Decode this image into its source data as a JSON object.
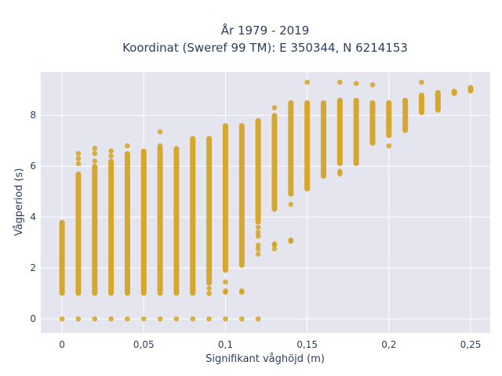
{
  "chart_data": {
    "type": "scatter",
    "title_line1": "År 1979 - 2019",
    "title_line2": "Koordinat (Sweref 99 TM): E 350344, N 6214153",
    "xlabel": "Signifikant våghöjd (m)",
    "ylabel": "Vågperiod (s)",
    "xlim": [
      -0.013,
      0.262
    ],
    "ylim": [
      -0.55,
      9.7
    ],
    "x_ticks": [
      0,
      0.05,
      0.1,
      0.15,
      0.2,
      0.25
    ],
    "x_tick_labels": [
      "0",
      "0,05",
      "0,1",
      "0,15",
      "0,2",
      "0,25"
    ],
    "y_ticks": [
      0,
      2,
      4,
      6,
      8
    ],
    "y_tick_labels": [
      "0",
      "2",
      "4",
      "6",
      "8"
    ],
    "grid": true,
    "colors": {
      "marker": "#d4a017",
      "plot_bg": "#e5e5f0",
      "grid": "#ffffff",
      "text": "#2a3f5f"
    },
    "columns": [
      {
        "x": 0,
        "ranges": [
          [
            1.0,
            3.8
          ]
        ],
        "points": [
          0
        ]
      },
      {
        "x": 0.01,
        "ranges": [
          [
            1.0,
            5.7
          ]
        ],
        "points": [
          0,
          6.1,
          6.3,
          6.5
        ]
      },
      {
        "x": 0.02,
        "ranges": [
          [
            1.0,
            6.0
          ]
        ],
        "points": [
          0,
          6.2,
          6.5,
          6.7
        ]
      },
      {
        "x": 0.03,
        "ranges": [
          [
            1.0,
            6.2
          ]
        ],
        "points": [
          0,
          6.4,
          6.6
        ]
      },
      {
        "x": 0.04,
        "ranges": [
          [
            1.0,
            6.5
          ]
        ],
        "points": [
          0,
          6.8
        ]
      },
      {
        "x": 0.05,
        "ranges": [
          [
            1.0,
            6.6
          ]
        ],
        "points": [
          0
        ]
      },
      {
        "x": 0.06,
        "ranges": [
          [
            1.0,
            6.7
          ]
        ],
        "points": [
          0,
          6.8,
          7.35
        ]
      },
      {
        "x": 0.07,
        "ranges": [
          [
            1.0,
            6.7
          ]
        ],
        "points": [
          0
        ]
      },
      {
        "x": 0.08,
        "ranges": [
          [
            1.0,
            7.1
          ]
        ],
        "points": [
          0
        ]
      },
      {
        "x": 0.09,
        "ranges": [
          [
            1.4,
            7.1
          ]
        ],
        "points": [
          0,
          1.0,
          1.2
        ]
      },
      {
        "x": 0.1,
        "ranges": [
          [
            1.9,
            7.6
          ]
        ],
        "points": [
          0,
          1.05,
          1.1,
          1.45
        ]
      },
      {
        "x": 0.11,
        "ranges": [
          [
            2.1,
            7.6
          ]
        ],
        "points": [
          0,
          1.05,
          1.1
        ]
      },
      {
        "x": 0.12,
        "ranges": [
          [
            3.8,
            7.8
          ]
        ],
        "points": [
          0,
          2.55,
          2.75,
          2.9,
          3.25,
          3.4,
          3.6
        ]
      },
      {
        "x": 0.13,
        "ranges": [
          [
            4.3,
            8.0
          ]
        ],
        "points": [
          2.75,
          2.9,
          2.95,
          8.3
        ]
      },
      {
        "x": 0.14,
        "ranges": [
          [
            4.9,
            8.5
          ]
        ],
        "points": [
          3.05,
          3.1,
          4.5
        ]
      },
      {
        "x": 0.15,
        "ranges": [
          [
            5.1,
            8.5
          ]
        ],
        "points": [
          9.3
        ]
      },
      {
        "x": 0.16,
        "ranges": [
          [
            5.6,
            8.5
          ]
        ],
        "points": []
      },
      {
        "x": 0.17,
        "ranges": [
          [
            6.1,
            8.6
          ]
        ],
        "points": [
          5.7,
          5.8,
          9.3
        ]
      },
      {
        "x": 0.18,
        "ranges": [
          [
            6.1,
            8.6
          ]
        ],
        "points": [
          9.25
        ]
      },
      {
        "x": 0.19,
        "ranges": [
          [
            6.9,
            8.5
          ]
        ],
        "points": [
          9.2
        ]
      },
      {
        "x": 0.2,
        "ranges": [
          [
            7.2,
            8.5
          ]
        ],
        "points": [
          6.8
        ]
      },
      {
        "x": 0.21,
        "ranges": [
          [
            7.4,
            8.6
          ]
        ],
        "points": []
      },
      {
        "x": 0.22,
        "ranges": [
          [
            8.1,
            8.8
          ]
        ],
        "points": [
          9.3
        ]
      },
      {
        "x": 0.23,
        "ranges": [
          [
            8.2,
            8.9
          ]
        ],
        "points": []
      },
      {
        "x": 0.24,
        "ranges": [
          [
            8.85,
            8.95
          ]
        ],
        "points": []
      },
      {
        "x": 0.25,
        "ranges": [
          [
            8.95,
            9.1
          ]
        ],
        "points": []
      }
    ]
  }
}
